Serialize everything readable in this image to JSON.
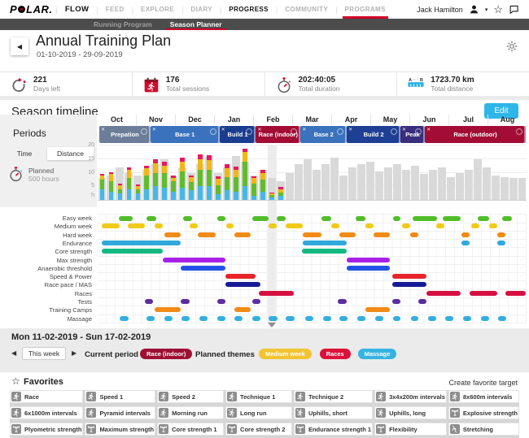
{
  "nav": {
    "brand": "POLAR",
    "menu": [
      {
        "label": "FLOW",
        "style": "flow"
      },
      {
        "label": "FEED"
      },
      {
        "label": "EXPLORE"
      },
      {
        "label": "DIARY"
      },
      {
        "label": "PROGRESS",
        "active": true
      },
      {
        "label": "COMMUNITY"
      },
      {
        "label": "PROGRAMS",
        "underlined": true
      }
    ],
    "user": "Jack Hamilton",
    "icons": [
      "user-icon",
      "star-icon",
      "feedback-icon"
    ]
  },
  "subnav": {
    "items": [
      {
        "label": "Running Program"
      },
      {
        "label": "Season Planner",
        "active": true
      }
    ]
  },
  "header": {
    "title": "Annual Training Plan",
    "dates": "01-10-2019 - 29-09-2019"
  },
  "stats": [
    {
      "icon": "days-left-icon",
      "value": "221",
      "label": "Days left"
    },
    {
      "icon": "sessions-icon",
      "value": "176",
      "label": "Total sessions"
    },
    {
      "icon": "duration-icon",
      "value": "202:40:05",
      "label": "Total duration"
    },
    {
      "icon": "distance-icon",
      "value": "1723.70 km",
      "label": "Total distance"
    }
  ],
  "season": {
    "title": "Season timeline",
    "edit_label": "Edit",
    "months": [
      "Oct",
      "Nov",
      "Dec",
      "Jan",
      "Feb",
      "Mar",
      "Apr",
      "May",
      "Jun",
      "Jul",
      "Aug"
    ],
    "periods": [
      {
        "label": "Prepation",
        "color": "#6c7d99",
        "start": 0.4,
        "end": 12.3
      },
      {
        "label": "Base 1",
        "color": "#3a72bd",
        "start": 12.3,
        "end": 28.4
      },
      {
        "label": "Build 1",
        "color": "#1b3d8f",
        "start": 28.4,
        "end": 36.9
      },
      {
        "label": "Race (indoor)",
        "color": "#a30d35",
        "start": 36.9,
        "end": 47.3
      },
      {
        "label": "Base 2",
        "color": "#3a72bd",
        "start": 47.3,
        "end": 58.1
      },
      {
        "label": "Build 2",
        "color": "#1e3f94",
        "start": 58.1,
        "end": 70.6
      },
      {
        "label": "Peak",
        "color": "#3a2d7d",
        "start": 70.6,
        "end": 76.3
      },
      {
        "label": "Race (outdoor)",
        "color": "#a30d35",
        "start": 76.3,
        "end": 99.8
      }
    ],
    "periods_panel": {
      "title": "Periods",
      "tabs": [
        {
          "label": "Time",
          "active": true
        },
        {
          "label": "Distance",
          "active": false
        }
      ],
      "planned_label": "Planned",
      "planned_value": "500 hours"
    },
    "gantt_rows": [
      {
        "label": "Easy week",
        "color": "#52bd28",
        "segments": [
          [
            4.9,
            8.1
          ],
          [
            11.4,
            13.6
          ],
          [
            19.9,
            22
          ],
          [
            27.8,
            29.7
          ],
          [
            36,
            39.8
          ],
          [
            41.7,
            43.9
          ],
          [
            52.1,
            54.4
          ],
          [
            60.2,
            62.5
          ],
          [
            68.8,
            70.6
          ],
          [
            73.5,
            79.2
          ],
          [
            80.5,
            84.7
          ],
          [
            88.6,
            91.3
          ],
          [
            94.3,
            96.6
          ]
        ]
      },
      {
        "label": "Medium week",
        "color": "#f0cb15",
        "segments": [
          [
            0.9,
            5.1
          ],
          [
            7,
            11
          ],
          [
            13.3,
            15.2
          ],
          [
            21.4,
            23.3
          ],
          [
            29.9,
            31.6
          ],
          [
            39.8,
            41.7
          ],
          [
            43.9,
            47.9
          ],
          [
            54.4,
            56.3
          ],
          [
            62.5,
            64.4
          ],
          [
            71,
            72.9
          ],
          [
            79,
            80.9
          ],
          [
            87.1,
            89
          ],
          [
            91.3,
            93.2
          ]
        ]
      },
      {
        "label": "Hard week",
        "color": "#f28a16",
        "segments": [
          [
            15.5,
            19.3
          ],
          [
            23.3,
            27.5
          ],
          [
            31.8,
            35.6
          ],
          [
            47.9,
            52.1
          ],
          [
            56.3,
            60.2
          ],
          [
            64.4,
            68.2
          ],
          [
            72.9,
            74.8
          ],
          [
            84.8,
            86.7
          ],
          [
            93.2,
            95.1
          ]
        ]
      },
      {
        "label": "Endurance",
        "color": "#2fa8dc",
        "segments": [
          [
            0.9,
            19.3
          ],
          [
            47.9,
            58.1
          ],
          [
            84.8,
            86.7
          ],
          [
            93.2,
            95.1
          ]
        ]
      },
      {
        "label": "Core strength",
        "color": "#12b981",
        "segments": [
          [
            0.9,
            15.2
          ],
          [
            47.7,
            58.1
          ]
        ]
      },
      {
        "label": "Max strength",
        "color": "#a81fe8",
        "segments": [
          [
            15.2,
            29.7
          ],
          [
            58.1,
            68.2
          ]
        ]
      },
      {
        "label": "Anaerobic threshold",
        "color": "#2153e8",
        "segments": [
          [
            19.3,
            29.7
          ],
          [
            58.1,
            68.2
          ]
        ]
      },
      {
        "label": "Speed & Power",
        "color": "#e8232a",
        "segments": [
          [
            29.7,
            36.9
          ],
          [
            68.6,
            76.7
          ]
        ]
      },
      {
        "label": "Race pace / MAS",
        "color": "#141b94",
        "segments": [
          [
            29.7,
            37.9
          ],
          [
            68.6,
            76.7
          ]
        ]
      },
      {
        "label": "Races",
        "color": "#d60f42",
        "segments": [
          [
            37.5,
            45.8
          ],
          [
            76.7,
            84.7
          ],
          [
            86.7,
            93.2
          ],
          [
            95.1,
            99.8
          ]
        ]
      },
      {
        "label": "Tests",
        "color": "#5b2da0",
        "segments": [
          [
            11,
            12.9
          ],
          [
            19.3,
            21.4
          ],
          [
            27.8,
            29.7
          ],
          [
            36,
            37.9
          ],
          [
            55.9,
            58.1
          ],
          [
            68.6,
            70.6
          ],
          [
            74.8,
            76.7
          ]
        ]
      },
      {
        "label": "Training Camps",
        "color": "#f28a16",
        "segments": [
          [
            13.3,
            19.3
          ],
          [
            31.8,
            35.6
          ],
          [
            62.5,
            68.2
          ]
        ]
      },
      {
        "label": "Massage",
        "color": "#33aee0",
        "segments": [
          [
            5.1,
            7.2
          ],
          [
            11.4,
            13.3
          ],
          [
            15.5,
            17.4
          ],
          [
            19.5,
            21.4
          ],
          [
            23.7,
            25.6
          ],
          [
            27.8,
            29.7
          ],
          [
            31.8,
            33.7
          ],
          [
            36,
            37.9
          ],
          [
            39.8,
            42
          ],
          [
            43.9,
            46
          ],
          [
            48.3,
            50.2
          ],
          [
            52.5,
            54.4
          ],
          [
            56.4,
            58.3
          ],
          [
            60.6,
            62.5
          ],
          [
            64.8,
            66.7
          ],
          [
            68.8,
            70.6
          ],
          [
            73,
            74.8
          ],
          [
            77.1,
            79
          ],
          [
            81.1,
            83
          ],
          [
            85.2,
            87.1
          ],
          [
            89.4,
            91.3
          ],
          [
            93.4,
            95.3
          ]
        ]
      }
    ]
  },
  "chart_data": {
    "type": "bar",
    "unit": "h",
    "ylim": [
      0,
      20
    ],
    "yticks": [
      20,
      15,
      10,
      5
    ],
    "weeks": 48,
    "current_week_index": 19,
    "planned_gray": [
      8,
      9,
      12,
      10,
      9,
      11,
      13,
      15,
      8.8,
      12,
      10,
      13,
      16,
      10,
      12,
      16,
      14,
      9,
      11,
      8,
      7,
      10,
      13,
      15,
      11,
      13,
      15.5,
      9,
      12,
      13,
      14,
      10.5,
      12,
      13,
      11,
      12.5,
      9.5,
      11,
      12,
      8.5,
      10,
      11,
      15,
      12,
      9,
      8.5,
      8,
      8
    ],
    "stack_order": [
      "blue",
      "green",
      "yellow",
      "red"
    ],
    "stack_colors": {
      "blue": "#45b8e8",
      "green": "#61bc2a",
      "yellow": "#f1b813",
      "red": "#e8195c"
    },
    "stacks": [
      [
        4,
        3.5,
        1.5,
        0.7
      ],
      [
        3,
        4,
        2.5,
        0.8
      ],
      [
        2.5,
        1.5,
        1.5,
        0.5
      ],
      [
        4,
        4,
        3,
        1
      ],
      [
        2.5,
        1.5,
        1,
        0.6
      ],
      [
        4,
        5,
        2.5,
        1
      ],
      [
        5,
        5,
        3.5,
        1.5
      ],
      [
        4.5,
        5.5,
        2.5,
        1.5
      ],
      [
        3,
        4,
        1.2,
        0.7
      ],
      [
        4.5,
        6,
        3.5,
        1.5
      ],
      [
        3.5,
        3,
        1.8,
        0.8
      ],
      [
        5,
        6,
        4,
        1.8
      ],
      [
        5,
        6,
        3.5,
        1.8
      ],
      [
        2,
        3.5,
        2.2,
        1
      ],
      [
        3.5,
        5,
        3,
        1.5
      ],
      [
        3,
        5.5,
        2.5,
        1.2
      ],
      [
        5,
        9,
        3.5,
        1.2
      ],
      [
        1.5,
        4.5,
        2,
        0.8
      ],
      [
        3,
        4.5,
        2.5,
        1
      ],
      [
        1,
        0.8,
        0.5,
        0.3
      ],
      [
        1.5,
        1.2,
        1.2,
        0.8
      ]
    ]
  },
  "week_summary": {
    "date_range": "Mon 11-02-2019 - Sun 17-02-2019",
    "this_week_label": "This week",
    "current_period_label": "Current period",
    "current_period_badge": {
      "label": "Race (indoor)",
      "color": "#9e0f33"
    },
    "planned_themes_label": "Planned themes",
    "themes": [
      {
        "label": "Medium week",
        "color": "#f2c432"
      },
      {
        "label": "Races",
        "color": "#dc1038"
      },
      {
        "label": "Massage",
        "color": "#36b3e2"
      }
    ]
  },
  "favorites": {
    "title": "Favorites",
    "create_label": "Create favorite target",
    "items": [
      {
        "label": "Race",
        "icon": "run"
      },
      {
        "label": "Speed 1",
        "icon": "run"
      },
      {
        "label": "Speed 2",
        "icon": "run"
      },
      {
        "label": "Technique 1",
        "icon": "run"
      },
      {
        "label": "Technique 2",
        "icon": "run"
      },
      {
        "label": "3x4x200m intervals",
        "icon": "run"
      },
      {
        "label": "8x600m intervals",
        "icon": "run"
      },
      {
        "label": "6x1000m intervals",
        "icon": "run"
      },
      {
        "label": "Pyramid intervals",
        "icon": "run"
      },
      {
        "label": "Morning run",
        "icon": "run"
      },
      {
        "label": "Long run",
        "icon": "run-sun"
      },
      {
        "label": "Uphills, short",
        "icon": "run-sun"
      },
      {
        "label": "Uphills, long",
        "icon": "run-sun"
      },
      {
        "label": "Explosive strength",
        "icon": "strength"
      },
      {
        "label": "Plyometric strength",
        "icon": "strength"
      },
      {
        "label": "Maximum strength",
        "icon": "strength"
      },
      {
        "label": "Core strength 1",
        "icon": "strength"
      },
      {
        "label": "Core strength 2",
        "icon": "strength"
      },
      {
        "label": "Endurance strength 1",
        "icon": "strength"
      },
      {
        "label": "Flexibility",
        "icon": "strength"
      },
      {
        "label": "Stretching",
        "icon": "stretch"
      }
    ],
    "partial_next_row_cards": 7
  }
}
